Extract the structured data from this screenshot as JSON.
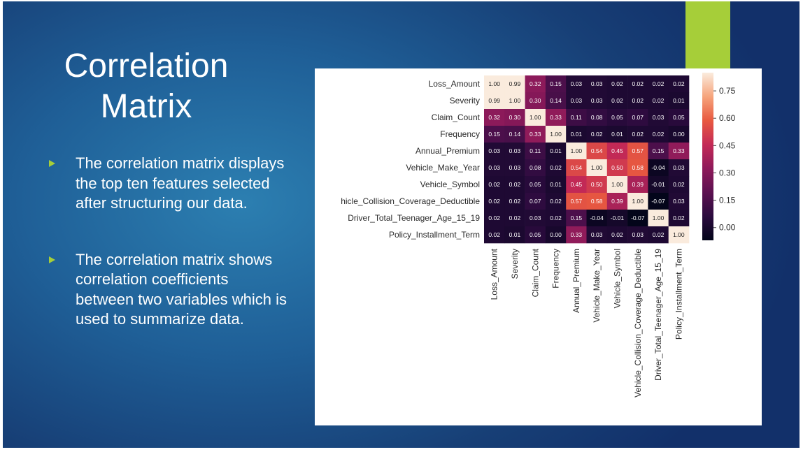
{
  "slide": {
    "title_line1": "Correlation",
    "title_line2": "Matrix",
    "bullets": [
      "The correlation matrix displays the top ten features selected after structuring our data.",
      "The correlation matrix shows correlation coefficients between two variables which is used to summarize data."
    ],
    "colors": {
      "accent": "#a6ce39",
      "background": "#1f5f97"
    }
  },
  "chart_data": {
    "type": "heatmap",
    "labels": [
      "Loss_Amount",
      "Severity",
      "Claim_Count",
      "Frequency",
      "Annual_Premium",
      "Vehicle_Make_Year",
      "Vehicle_Symbol",
      "Vehicle_Collision_Coverage_Deductible",
      "Driver_Total_Teenager_Age_15_19",
      "Policy_Installment_Term"
    ],
    "row_labels_shown": [
      "Loss_Amount",
      "Severity",
      "Claim_Count",
      "Frequency",
      "Annual_Premium",
      "Vehicle_Make_Year",
      "Vehicle_Symbol",
      "hicle_Collision_Coverage_Deductible",
      "Driver_Total_Teenager_Age_15_19",
      "Policy_Installment_Term"
    ],
    "values": [
      [
        1.0,
        0.99,
        0.32,
        0.15,
        0.03,
        0.03,
        0.02,
        0.02,
        0.02,
        0.02
      ],
      [
        0.99,
        1.0,
        0.3,
        0.14,
        0.03,
        0.03,
        0.02,
        0.02,
        0.02,
        0.01
      ],
      [
        0.32,
        0.3,
        1.0,
        0.33,
        0.11,
        0.08,
        0.05,
        0.07,
        0.03,
        0.05
      ],
      [
        0.15,
        0.14,
        0.33,
        1.0,
        0.01,
        0.02,
        0.01,
        0.02,
        0.02,
        0.0
      ],
      [
        0.03,
        0.03,
        0.11,
        0.01,
        1.0,
        0.54,
        0.45,
        0.57,
        0.15,
        0.33
      ],
      [
        0.03,
        0.03,
        0.08,
        0.02,
        0.54,
        1.0,
        0.5,
        0.58,
        -0.04,
        0.03
      ],
      [
        0.02,
        0.02,
        0.05,
        0.01,
        0.45,
        0.5,
        1.0,
        0.39,
        -0.01,
        0.02
      ],
      [
        0.02,
        0.02,
        0.07,
        0.02,
        0.57,
        0.58,
        0.39,
        1.0,
        -0.07,
        0.03
      ],
      [
        0.02,
        0.02,
        0.03,
        0.02,
        0.15,
        -0.04,
        -0.01,
        -0.07,
        1.0,
        0.02
      ],
      [
        0.02,
        0.01,
        0.05,
        0.0,
        0.33,
        0.03,
        0.02,
        0.03,
        0.02,
        1.0
      ]
    ],
    "value_format": "0.00",
    "colorbar": {
      "ticks": [
        "0.75",
        "0.60",
        "0.45",
        "0.30",
        "0.15",
        "0.00"
      ],
      "tick_values": [
        0.75,
        0.6,
        0.45,
        0.3,
        0.15,
        0.0
      ],
      "range": [
        -0.07,
        0.85
      ],
      "colormap": [
        "#03051a",
        "#2b0b3e",
        "#5c1151",
        "#8e1a5a",
        "#c42a56",
        "#e85940",
        "#f6a47c",
        "#faebdd"
      ]
    },
    "annotations": true
  }
}
